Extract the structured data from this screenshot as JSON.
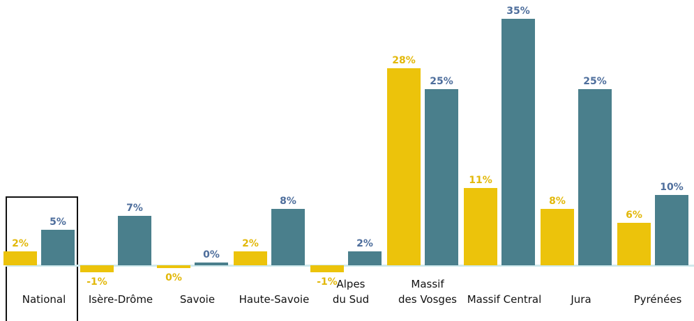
{
  "chart_data": {
    "type": "bar",
    "categories": [
      "National",
      "Isère-Drôme",
      "Savoie",
      "Haute-Savoie",
      "Alpes\ndu Sud",
      "Massif\ndes Vosges",
      "Massif Central",
      "Jura",
      "Pyrénées"
    ],
    "series": [
      {
        "color": "#ecc30b",
        "label_color": "#e2b80a",
        "values": [
          2,
          -1,
          -0.4,
          2,
          -1,
          28,
          11,
          8,
          6
        ],
        "value_labels": [
          "2%",
          "-1%",
          "0%",
          "2%",
          "-1%",
          "28%",
          "11%",
          "8%",
          "6%"
        ]
      },
      {
        "color": "#4a7f8c",
        "label_color": "#4e6e9c",
        "values": [
          5,
          7,
          0.4,
          8,
          2,
          25,
          35,
          25,
          10
        ],
        "value_labels": [
          "5%",
          "7%",
          "0%",
          "8%",
          "2%",
          "25%",
          "35%",
          "25%",
          "10%"
        ]
      }
    ],
    "ylim": [
      -1.5,
      36
    ]
  }
}
